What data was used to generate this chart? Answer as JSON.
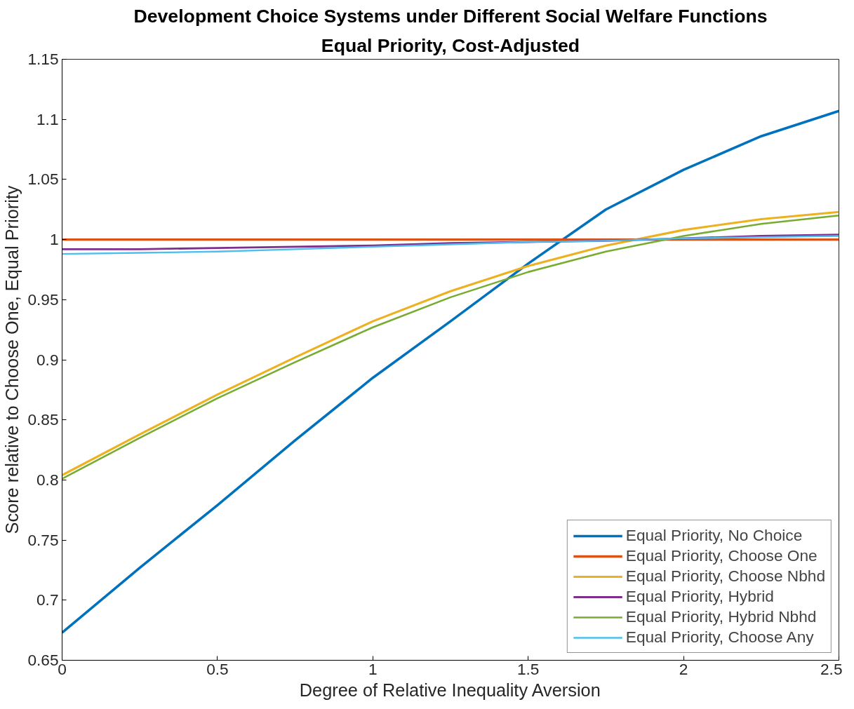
{
  "chart_data": {
    "type": "line",
    "title": "Development Choice Systems under Different Social Welfare Functions",
    "subtitle": "Equal Priority, Cost-Adjusted",
    "xlabel": "Degree of Relative Inequality Aversion",
    "ylabel": "Score relative to Choose One, Equal Priority",
    "x": [
      0,
      0.25,
      0.5,
      0.75,
      1,
      1.25,
      1.5,
      1.75,
      2,
      2.25,
      2.5
    ],
    "series": [
      {
        "name": "Equal Priority, No Choice",
        "color": "#0072bd",
        "values": [
          0.673,
          0.727,
          0.779,
          0.833,
          0.885,
          0.932,
          0.98,
          1.025,
          1.058,
          1.086,
          1.107
        ]
      },
      {
        "name": "Equal Priority, Choose One",
        "color": "#d95319",
        "values": [
          1,
          1,
          1,
          1,
          1,
          1,
          1,
          1,
          1,
          1,
          1
        ]
      },
      {
        "name": "Equal Priority, Choose Nbhd",
        "color": "#edb120",
        "values": [
          0.804,
          0.838,
          0.871,
          0.902,
          0.932,
          0.957,
          0.978,
          0.995,
          1.008,
          1.017,
          1.023
        ]
      },
      {
        "name": "Equal Priority, Hybrid",
        "color": "#7e2f8e",
        "values": [
          0.992,
          0.992,
          0.993,
          0.994,
          0.995,
          0.997,
          0.998,
          0.999,
          1.001,
          1.003,
          1.004
        ]
      },
      {
        "name": "Equal Priority, Hybrid Nbhd",
        "color": "#77ac30",
        "values": [
          0.801,
          0.835,
          0.868,
          0.898,
          0.927,
          0.952,
          0.973,
          0.99,
          1.003,
          1.013,
          1.02
        ]
      },
      {
        "name": "Equal Priority, Choose Any",
        "color": "#4dbeee",
        "values": [
          0.988,
          0.989,
          0.99,
          0.992,
          0.994,
          0.996,
          0.998,
          0.999,
          1.001,
          1.002,
          1.003
        ]
      }
    ],
    "xlim": [
      0,
      2.5
    ],
    "xticks": [
      0,
      0.5,
      1,
      1.5,
      2,
      2.5
    ],
    "ylim": [
      0.65,
      1.15
    ],
    "yticks": [
      0.65,
      0.7,
      0.75,
      0.8,
      0.85,
      0.9,
      0.95,
      1,
      1.05,
      1.1,
      1.15
    ],
    "grid": false,
    "legend": "bottom right",
    "marker": "none",
    "line_style": "solid"
  }
}
